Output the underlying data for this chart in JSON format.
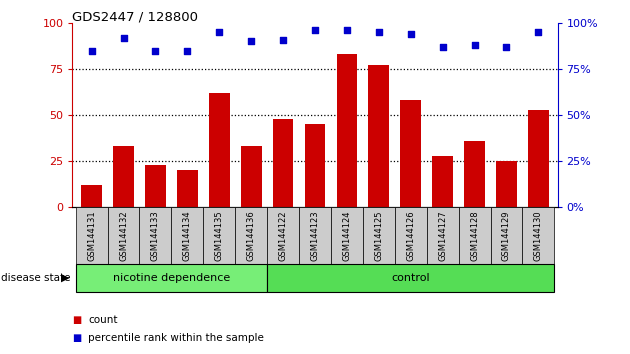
{
  "title": "GDS2447 / 128800",
  "categories": [
    "GSM144131",
    "GSM144132",
    "GSM144133",
    "GSM144134",
    "GSM144135",
    "GSM144136",
    "GSM144122",
    "GSM144123",
    "GSM144124",
    "GSM144125",
    "GSM144126",
    "GSM144127",
    "GSM144128",
    "GSM144129",
    "GSM144130"
  ],
  "count_values": [
    12,
    33,
    23,
    20,
    62,
    33,
    48,
    45,
    83,
    77,
    58,
    28,
    36,
    25,
    53
  ],
  "percentile_values": [
    85,
    92,
    85,
    85,
    95,
    90,
    91,
    96,
    96,
    95,
    94,
    87,
    88,
    87,
    95
  ],
  "bar_color": "#cc0000",
  "dot_color": "#0000cc",
  "n_nicotine": 6,
  "n_control": 9,
  "nicotine_label": "nicotine dependence",
  "control_label": "control",
  "nicotine_color": "#77ee77",
  "control_color": "#55dd55",
  "tick_area_color": "#cccccc",
  "ylim": [
    0,
    100
  ],
  "yticks": [
    0,
    25,
    50,
    75,
    100
  ],
  "left_axis_color": "#cc0000",
  "right_axis_color": "#0000cc",
  "disease_state_label": "disease state",
  "legend_count_label": "count",
  "legend_percentile_label": "percentile rank within the sample"
}
